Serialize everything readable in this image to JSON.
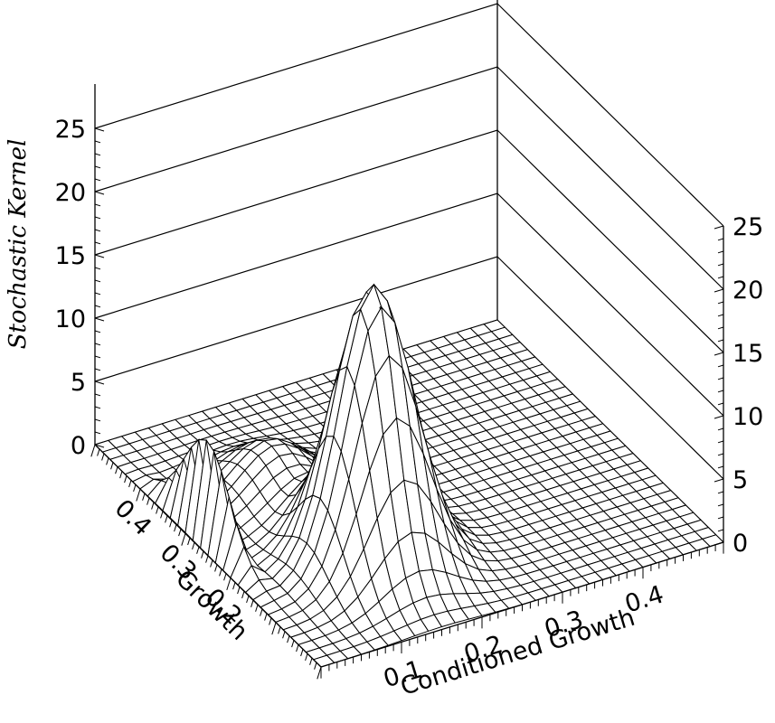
{
  "chart_data": {
    "type": "surface",
    "zlabel": "Stochastic Kernel",
    "xlabel": "Conditioned Growth",
    "ylabel": "Growth",
    "x_ticks": [
      "0.1",
      "0.2",
      "0.3",
      "0.4"
    ],
    "y_ticks": [
      "0.4",
      "0.3",
      "0.2"
    ],
    "z_ticks": [
      "0",
      "5",
      "10",
      "15",
      "20",
      "25"
    ],
    "zlim": [
      0,
      25
    ],
    "xlim": [
      0.0,
      0.5
    ],
    "ylim": [
      0.0,
      0.5
    ],
    "grid_size": 30,
    "peaks": [
      {
        "x": 0.15,
        "y": 0.15,
        "height": 22
      },
      {
        "x": 0.12,
        "y": 0.32,
        "height": 4
      },
      {
        "x": 0.02,
        "y": 0.28,
        "height": 15,
        "narrow": true
      }
    ],
    "colors": {
      "line": "#000000",
      "surface_fill": "#ffffff"
    }
  }
}
